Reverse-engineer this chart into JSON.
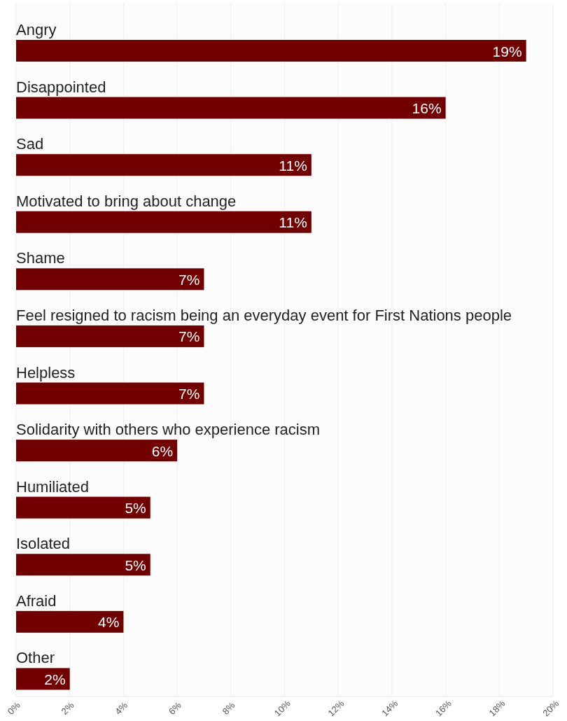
{
  "chart_data": {
    "type": "bar",
    "orientation": "horizontal",
    "categories": [
      "Angry",
      "Disappointed",
      "Sad",
      "Motivated to bring about change",
      "Shame",
      "Feel resigned to racism being an everyday event for First Nations people",
      "Helpless",
      "Solidarity with others who experience racism",
      "Humiliated",
      "Isolated",
      "Afraid",
      "Other"
    ],
    "values": [
      19,
      16,
      11,
      11,
      7,
      7,
      7,
      6,
      5,
      5,
      4,
      2
    ],
    "value_labels": [
      "19%",
      "16%",
      "11%",
      "11%",
      "7%",
      "7%",
      "7%",
      "6%",
      "5%",
      "5%",
      "4%",
      "2%"
    ],
    "color": "#730000",
    "xlim": [
      0,
      20
    ],
    "xticks": [
      {
        "value": 0,
        "label": "0%"
      },
      {
        "value": 2,
        "label": "2%"
      },
      {
        "value": 4,
        "label": "4%"
      },
      {
        "value": 6,
        "label": "6%"
      },
      {
        "value": 8,
        "label": "8%"
      },
      {
        "value": 10,
        "label": "10%"
      },
      {
        "value": 12,
        "label": "12%"
      },
      {
        "value": 14,
        "label": "14%"
      },
      {
        "value": 16,
        "label": "16%"
      },
      {
        "value": 18,
        "label": "18%"
      },
      {
        "value": 20,
        "label": "20%"
      }
    ],
    "grid": "x"
  }
}
